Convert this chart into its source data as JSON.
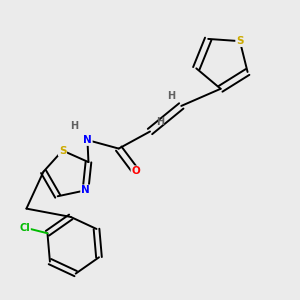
{
  "background_color": "#ebebeb",
  "atom_colors": {
    "C": "#000000",
    "H": "#606060",
    "N": "#0000ff",
    "O": "#ff0000",
    "S": "#ccaa00",
    "Cl": "#00bb00"
  },
  "figsize": [
    3.0,
    3.0
  ],
  "dpi": 100
}
